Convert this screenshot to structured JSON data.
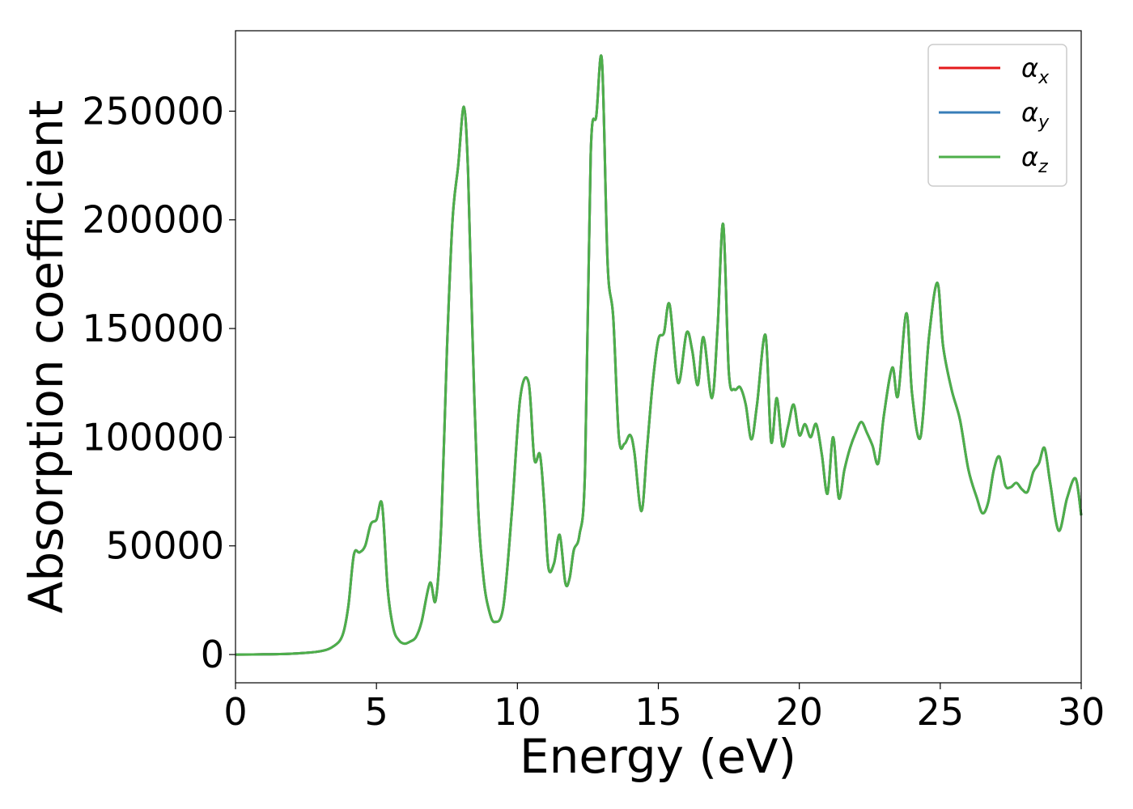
{
  "chart_data": {
    "type": "line",
    "xlabel": "Energy (eV)",
    "ylabel": "Absorption coefficient",
    "xlim": [
      0,
      30
    ],
    "ylim": [
      -13000,
      287000
    ],
    "xticks": [
      0,
      5,
      10,
      15,
      20,
      25,
      30
    ],
    "yticks": [
      0,
      50000,
      100000,
      150000,
      200000,
      250000
    ],
    "grid": false,
    "legend_position": "top-right",
    "series": [
      {
        "name": "α",
        "subscript": "x",
        "color": "#e41a1c"
      },
      {
        "name": "α",
        "subscript": "y",
        "color": "#377eb8"
      },
      {
        "name": "α",
        "subscript": "z",
        "color": "#4daf4a"
      }
    ],
    "x": [
      0,
      1,
      2,
      3,
      3.5,
      3.8,
      4.0,
      4.2,
      4.4,
      4.6,
      4.8,
      5.0,
      5.2,
      5.4,
      5.6,
      5.8,
      6.0,
      6.2,
      6.4,
      6.6,
      6.9,
      7.1,
      7.3,
      7.5,
      7.7,
      7.9,
      8.1,
      8.25,
      8.4,
      8.6,
      8.8,
      9.0,
      9.2,
      9.5,
      9.8,
      10.1,
      10.4,
      10.6,
      10.8,
      10.95,
      11.1,
      11.3,
      11.5,
      11.7,
      11.85,
      12.0,
      12.2,
      12.4,
      12.6,
      12.8,
      13.0,
      13.2,
      13.4,
      13.6,
      13.8,
      14.0,
      14.15,
      14.4,
      14.6,
      14.8,
      15.0,
      15.2,
      15.4,
      15.7,
      16.0,
      16.2,
      16.4,
      16.6,
      16.9,
      17.1,
      17.3,
      17.5,
      17.7,
      17.9,
      18.1,
      18.3,
      18.5,
      18.8,
      19.0,
      19.2,
      19.4,
      19.6,
      19.8,
      20.0,
      20.2,
      20.4,
      20.6,
      20.8,
      21.0,
      21.2,
      21.4,
      21.6,
      21.8,
      22.0,
      22.2,
      22.4,
      22.6,
      22.8,
      23.0,
      23.3,
      23.5,
      23.8,
      24.0,
      24.3,
      24.6,
      24.9,
      25.1,
      25.4,
      25.7,
      26.0,
      26.3,
      26.5,
      26.7,
      26.9,
      27.1,
      27.3,
      27.5,
      27.7,
      27.9,
      28.1,
      28.3,
      28.5,
      28.7,
      28.9,
      29.2,
      29.5,
      29.8,
      30.0
    ],
    "values": [
      0,
      100,
      400,
      1500,
      4000,
      9000,
      22000,
      46000,
      47000,
      50000,
      60000,
      62000,
      69000,
      30000,
      12000,
      6500,
      5000,
      6000,
      8000,
      15000,
      33000,
      25000,
      60000,
      140000,
      200000,
      225000,
      252000,
      222000,
      150000,
      70000,
      35000,
      20000,
      15000,
      22000,
      65000,
      118000,
      125000,
      90000,
      92000,
      70000,
      40000,
      42000,
      55000,
      33000,
      35000,
      48000,
      55000,
      85000,
      230000,
      248000,
      273000,
      180000,
      155000,
      100000,
      97000,
      101000,
      93000,
      66000,
      95000,
      125000,
      145000,
      148000,
      161000,
      125000,
      148000,
      140000,
      124000,
      146000,
      118000,
      150000,
      198000,
      130000,
      122000,
      123000,
      115000,
      99000,
      115000,
      147000,
      98000,
      118000,
      96000,
      105000,
      115000,
      101000,
      106000,
      100000,
      106000,
      92000,
      74000,
      100000,
      72000,
      85000,
      95000,
      102000,
      107000,
      102000,
      96000,
      88000,
      110000,
      132000,
      119000,
      157000,
      120000,
      100000,
      146000,
      171000,
      142000,
      122000,
      108000,
      85000,
      72000,
      65000,
      70000,
      85000,
      91000,
      78000,
      77000,
      79000,
      76000,
      75000,
      84000,
      88000,
      95000,
      79000,
      57000,
      72000,
      81000,
      64000
    ]
  }
}
